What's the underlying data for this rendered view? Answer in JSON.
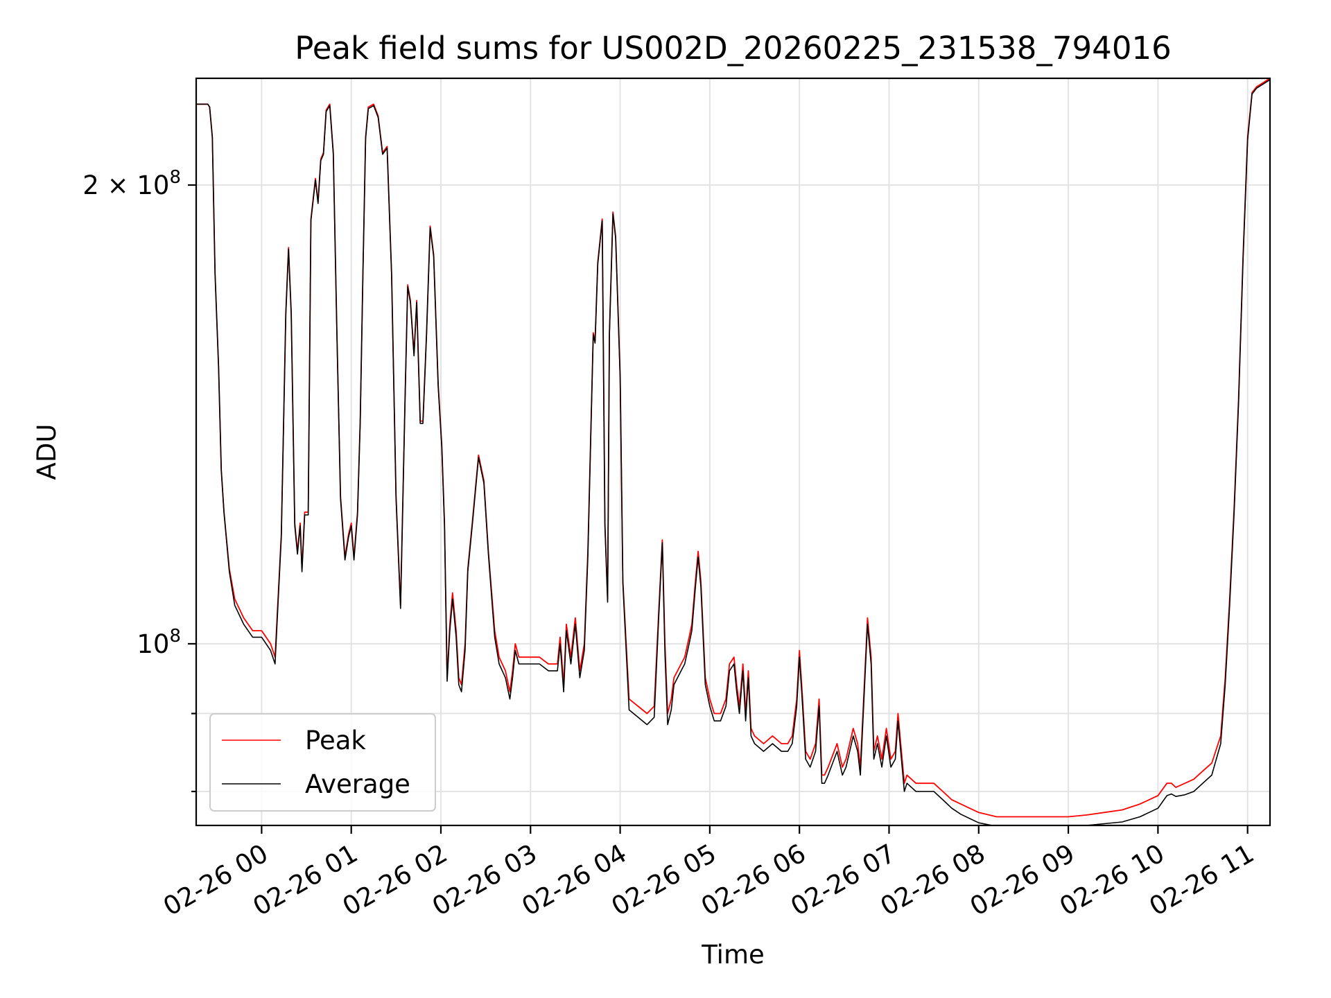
{
  "chart_data": {
    "type": "line",
    "title": "Peak field sums for US002D_20260225_231538_794016",
    "xlabel": "Time",
    "ylabel": "ADU",
    "yscale": "log",
    "grid": true,
    "legend_position": "lower-left",
    "xlim": [
      -0.73,
      11.25
    ],
    "ylim": [
      76000000,
      235000000
    ],
    "x_unit": "hours after 2026-02-26 00:00",
    "x_ticks": [
      {
        "value": 0,
        "label": "02-26 00"
      },
      {
        "value": 1,
        "label": "02-26 01"
      },
      {
        "value": 2,
        "label": "02-26 02"
      },
      {
        "value": 3,
        "label": "02-26 03"
      },
      {
        "value": 4,
        "label": "02-26 04"
      },
      {
        "value": 5,
        "label": "02-26 05"
      },
      {
        "value": 6,
        "label": "02-26 06"
      },
      {
        "value": 7,
        "label": "02-26 07"
      },
      {
        "value": 8,
        "label": "02-26 08"
      },
      {
        "value": 9,
        "label": "02-26 09"
      },
      {
        "value": 10,
        "label": "02-26 10"
      },
      {
        "value": 11,
        "label": "02-26 11"
      }
    ],
    "y_major_ticks": [
      {
        "value": 100000000,
        "base": "10",
        "exp": "8",
        "coef": ""
      },
      {
        "value": 200000000,
        "base": "10",
        "exp": "8",
        "coef": "2 × "
      }
    ],
    "y_minor_ticks": [
      80000000,
      90000000
    ],
    "series": [
      {
        "name": "Peak",
        "color": "#ff0000",
        "x": [
          -0.73,
          -0.6,
          -0.58,
          -0.55,
          -0.52,
          -0.48,
          -0.45,
          -0.42,
          -0.36,
          -0.3,
          -0.2,
          -0.1,
          0.0,
          0.1,
          0.15,
          0.22,
          0.27,
          0.3,
          0.33,
          0.37,
          0.4,
          0.43,
          0.45,
          0.48,
          0.52,
          0.55,
          0.6,
          0.63,
          0.66,
          0.69,
          0.72,
          0.76,
          0.8,
          0.84,
          0.88,
          0.93,
          0.97,
          1.0,
          1.03,
          1.07,
          1.1,
          1.13,
          1.16,
          1.19,
          1.25,
          1.3,
          1.35,
          1.4,
          1.45,
          1.5,
          1.55,
          1.6,
          1.63,
          1.66,
          1.7,
          1.73,
          1.77,
          1.8,
          1.84,
          1.88,
          1.92,
          1.97,
          2.01,
          2.04,
          2.07,
          2.1,
          2.13,
          2.17,
          2.2,
          2.23,
          2.27,
          2.3,
          2.35,
          2.42,
          2.48,
          2.53,
          2.6,
          2.65,
          2.72,
          2.77,
          2.8,
          2.83,
          2.87,
          2.9,
          3.0,
          3.1,
          3.2,
          3.3,
          3.33,
          3.37,
          3.4,
          3.45,
          3.5,
          3.55,
          3.6,
          3.64,
          3.7,
          3.72,
          3.75,
          3.8,
          3.83,
          3.86,
          3.88,
          3.92,
          3.95,
          4.0,
          4.03,
          4.06,
          4.1,
          4.2,
          4.3,
          4.38,
          4.43,
          4.47,
          4.5,
          4.53,
          4.57,
          4.6,
          4.68,
          4.72,
          4.77,
          4.8,
          4.84,
          4.87,
          4.9,
          4.95,
          5.0,
          5.05,
          5.12,
          5.18,
          5.22,
          5.27,
          5.3,
          5.33,
          5.37,
          5.4,
          5.43,
          5.46,
          5.5,
          5.6,
          5.7,
          5.8,
          5.87,
          5.92,
          5.97,
          6.0,
          6.03,
          6.07,
          6.12,
          6.18,
          6.22,
          6.25,
          6.28,
          6.32,
          6.42,
          6.48,
          6.52,
          6.6,
          6.65,
          6.68,
          6.72,
          6.76,
          6.8,
          6.83,
          6.87,
          6.92,
          6.97,
          7.02,
          7.07,
          7.1,
          7.13,
          7.17,
          7.2,
          7.3,
          7.4,
          7.5,
          7.6,
          7.7,
          7.8,
          7.9,
          8.0,
          8.2,
          8.4,
          8.6,
          8.8,
          9.0,
          9.2,
          9.4,
          9.6,
          9.8,
          10.0,
          10.1,
          10.15,
          10.2,
          10.3,
          10.4,
          10.5,
          10.6,
          10.7,
          10.75,
          10.8,
          10.85,
          10.9,
          10.95,
          11.0,
          11.05,
          11.1,
          11.15,
          11.25
        ],
        "values": [
          226000000,
          226000000,
          225000000,
          215000000,
          175000000,
          152000000,
          130000000,
          122000000,
          112000000,
          107000000,
          104000000,
          102000000,
          102000000,
          100000000,
          98000000,
          118000000,
          165000000,
          182000000,
          165000000,
          120000000,
          115000000,
          120000000,
          112000000,
          122000000,
          122000000,
          190000000,
          202000000,
          195000000,
          208000000,
          210000000,
          224000000,
          226000000,
          210000000,
          160000000,
          125000000,
          114000000,
          118000000,
          120000000,
          114000000,
          122000000,
          140000000,
          175000000,
          215000000,
          225000000,
          226000000,
          222000000,
          210000000,
          212000000,
          175000000,
          125000000,
          106000000,
          145000000,
          172000000,
          168000000,
          155000000,
          168000000,
          140000000,
          140000000,
          160000000,
          188000000,
          180000000,
          148000000,
          135000000,
          120000000,
          95000000,
          103000000,
          108000000,
          102000000,
          95000000,
          94000000,
          100000000,
          112000000,
          120000000,
          133000000,
          128000000,
          115000000,
          102000000,
          98000000,
          96000000,
          93000000,
          96000000,
          100000000,
          98000000,
          98000000,
          98000000,
          98000000,
          97000000,
          97000000,
          101000000,
          94000000,
          103000000,
          98000000,
          104000000,
          96000000,
          100000000,
          115000000,
          160000000,
          158000000,
          178000000,
          190000000,
          120000000,
          107000000,
          160000000,
          192000000,
          185000000,
          150000000,
          110000000,
          102000000,
          92000000,
          91000000,
          90000000,
          91000000,
          105000000,
          117000000,
          100000000,
          90000000,
          92000000,
          95000000,
          97000000,
          98000000,
          101000000,
          103000000,
          110000000,
          115000000,
          110000000,
          95000000,
          92000000,
          90000000,
          90000000,
          92000000,
          97000000,
          98000000,
          94000000,
          91000000,
          97000000,
          90000000,
          96000000,
          88000000,
          87000000,
          86000000,
          87000000,
          86000000,
          86000000,
          87000000,
          92000000,
          99000000,
          93000000,
          85000000,
          84000000,
          86000000,
          92000000,
          82000000,
          82000000,
          83000000,
          86000000,
          83000000,
          84000000,
          88000000,
          86000000,
          83000000,
          93000000,
          104000000,
          98000000,
          85000000,
          87000000,
          84000000,
          88000000,
          84000000,
          85000000,
          90000000,
          86000000,
          81000000,
          82000000,
          81000000,
          81000000,
          81000000,
          80000000,
          79000000,
          78500000,
          78000000,
          77500000,
          77000000,
          77000000,
          77000000,
          77000000,
          77000000,
          77200000,
          77500000,
          77800000,
          78500000,
          79500000,
          81000000,
          81000000,
          80500000,
          81000000,
          81500000,
          82500000,
          83500000,
          87000000,
          95000000,
          107000000,
          123000000,
          145000000,
          180000000,
          215000000,
          230000000,
          232000000,
          233000000,
          235000000
        ]
      },
      {
        "name": "Average",
        "color": "#000000",
        "x": [
          -0.73,
          -0.6,
          -0.58,
          -0.55,
          -0.52,
          -0.48,
          -0.45,
          -0.42,
          -0.36,
          -0.3,
          -0.2,
          -0.1,
          0.0,
          0.1,
          0.15,
          0.22,
          0.27,
          0.3,
          0.33,
          0.37,
          0.4,
          0.43,
          0.45,
          0.48,
          0.52,
          0.55,
          0.6,
          0.63,
          0.66,
          0.69,
          0.72,
          0.76,
          0.8,
          0.84,
          0.88,
          0.93,
          0.97,
          1.0,
          1.03,
          1.07,
          1.1,
          1.13,
          1.16,
          1.19,
          1.25,
          1.3,
          1.35,
          1.4,
          1.45,
          1.5,
          1.55,
          1.6,
          1.63,
          1.66,
          1.7,
          1.73,
          1.77,
          1.8,
          1.84,
          1.88,
          1.92,
          1.97,
          2.01,
          2.04,
          2.07,
          2.1,
          2.13,
          2.17,
          2.2,
          2.23,
          2.27,
          2.3,
          2.35,
          2.42,
          2.48,
          2.53,
          2.6,
          2.65,
          2.72,
          2.77,
          2.8,
          2.83,
          2.87,
          2.9,
          3.0,
          3.1,
          3.2,
          3.3,
          3.33,
          3.37,
          3.4,
          3.45,
          3.5,
          3.55,
          3.6,
          3.64,
          3.7,
          3.72,
          3.75,
          3.8,
          3.83,
          3.86,
          3.88,
          3.92,
          3.95,
          4.0,
          4.03,
          4.06,
          4.1,
          4.2,
          4.3,
          4.38,
          4.43,
          4.47,
          4.5,
          4.53,
          4.57,
          4.6,
          4.68,
          4.72,
          4.77,
          4.8,
          4.84,
          4.87,
          4.9,
          4.95,
          5.0,
          5.05,
          5.12,
          5.18,
          5.22,
          5.27,
          5.3,
          5.33,
          5.37,
          5.4,
          5.43,
          5.46,
          5.5,
          5.6,
          5.7,
          5.8,
          5.87,
          5.92,
          5.97,
          6.0,
          6.03,
          6.07,
          6.12,
          6.18,
          6.22,
          6.25,
          6.28,
          6.32,
          6.42,
          6.48,
          6.52,
          6.6,
          6.65,
          6.68,
          6.72,
          6.76,
          6.8,
          6.83,
          6.87,
          6.92,
          6.97,
          7.02,
          7.07,
          7.1,
          7.13,
          7.17,
          7.2,
          7.3,
          7.4,
          7.5,
          7.6,
          7.7,
          7.8,
          7.9,
          8.0,
          8.2,
          8.4,
          8.6,
          8.8,
          9.0,
          9.2,
          9.4,
          9.6,
          9.8,
          10.0,
          10.1,
          10.15,
          10.2,
          10.3,
          10.4,
          10.5,
          10.6,
          10.7,
          10.75,
          10.8,
          10.85,
          10.9,
          10.95,
          11.0,
          11.05,
          11.1,
          11.15,
          11.25
        ],
        "values": [
          226000000,
          226000000,
          225000000,
          215000000,
          175000000,
          152000000,
          130000000,
          122000000,
          111500000,
          106000000,
          103000000,
          101000000,
          101000000,
          99000000,
          97000000,
          117500000,
          164500000,
          181500000,
          164500000,
          119500000,
          114500000,
          119500000,
          111500000,
          121500000,
          121500000,
          189500000,
          201500000,
          194500000,
          207500000,
          209500000,
          223500000,
          225500000,
          209500000,
          159500000,
          124500000,
          113500000,
          117500000,
          119500000,
          113500000,
          121500000,
          139500000,
          174500000,
          214500000,
          224500000,
          225500000,
          221500000,
          209500000,
          211500000,
          174500000,
          124500000,
          105500000,
          144500000,
          171500000,
          167500000,
          154500000,
          167500000,
          139500000,
          139500000,
          159500000,
          187500000,
          179500000,
          147500000,
          134500000,
          119500000,
          94500000,
          102000000,
          107000000,
          101000000,
          94000000,
          93000000,
          99000000,
          111500000,
          119500000,
          132500000,
          127500000,
          114500000,
          101000000,
          97000000,
          95000000,
          92000000,
          95000000,
          99000000,
          97000000,
          97000000,
          97000000,
          97000000,
          96000000,
          96000000,
          100000000,
          93000000,
          102000000,
          97000000,
          103000000,
          95000000,
          99000000,
          114000000,
          159500000,
          157500000,
          177500000,
          189500000,
          119500000,
          106500000,
          159500000,
          191500000,
          184500000,
          149500000,
          109500000,
          101000000,
          90500000,
          89500000,
          88500000,
          89500000,
          104000000,
          116500000,
          98500000,
          88500000,
          90500000,
          94000000,
          96000000,
          97000000,
          100000000,
          102000000,
          109000000,
          114000000,
          109000000,
          94000000,
          91000000,
          89000000,
          89000000,
          91000000,
          96000000,
          97000000,
          93000000,
          90000000,
          96000000,
          89000000,
          95000000,
          87000000,
          86000000,
          85000000,
          86000000,
          85000000,
          85000000,
          86000000,
          91000000,
          98000000,
          92000000,
          84000000,
          83000000,
          85000000,
          91000000,
          81000000,
          81000000,
          82000000,
          85000000,
          82000000,
          83000000,
          87000000,
          85000000,
          82000000,
          92000000,
          103000000,
          97000000,
          84000000,
          86000000,
          83000000,
          87000000,
          83000000,
          84000000,
          89000000,
          85000000,
          80000000,
          81000000,
          80000000,
          80000000,
          80000000,
          79000000,
          78000000,
          77300000,
          76800000,
          76300000,
          75900000,
          75800000,
          75800000,
          75800000,
          75900000,
          76000000,
          76200000,
          76400000,
          77000000,
          78000000,
          79500000,
          79700000,
          79400000,
          79600000,
          80000000,
          81000000,
          82000000,
          86000000,
          94000000,
          106000000,
          122000000,
          144000000,
          179000000,
          214000000,
          229500000,
          231500000,
          232500000,
          234500000
        ]
      }
    ]
  }
}
